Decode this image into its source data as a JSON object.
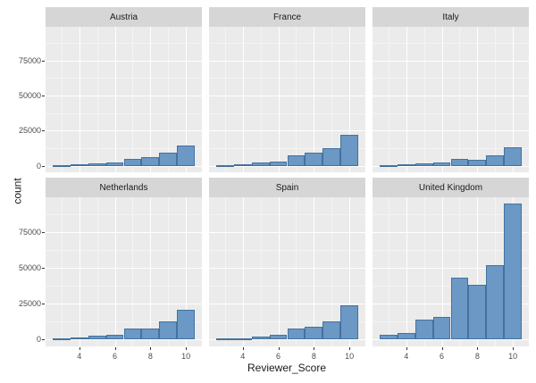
{
  "chart_data": {
    "type": "bar",
    "subtype": "faceted_histogram",
    "title": "",
    "xlabel": "Reviewer_Score",
    "ylabel": "count",
    "legend_position": "none",
    "grid": "major_and_minor",
    "binwidth": 1,
    "bin_centers": [
      3,
      4,
      5,
      6,
      7,
      8,
      9,
      10
    ],
    "x_range": [
      2.1,
      10.9
    ],
    "y_range": [
      -4700,
      99000
    ],
    "x_major_ticks": [
      4,
      6,
      8,
      10
    ],
    "x_minor_gridlines": [
      3,
      5,
      7,
      9
    ],
    "y_major_ticks": [
      0,
      25000,
      50000,
      75000
    ],
    "y_minor_gridlines": [
      12500,
      37500,
      62500,
      87500
    ],
    "facets": [
      {
        "label": "Austria",
        "values": [
          320,
          800,
          1500,
          2200,
          4700,
          6300,
          9100,
          14300
        ]
      },
      {
        "label": "France",
        "values": [
          400,
          1000,
          2100,
          2700,
          7700,
          9000,
          12500,
          21800
        ]
      },
      {
        "label": "Italy",
        "values": [
          400,
          800,
          1700,
          2300,
          4900,
          4300,
          7400,
          13000
        ]
      },
      {
        "label": "Netherlands",
        "values": [
          600,
          1250,
          2500,
          3500,
          7700,
          7700,
          12500,
          20800
        ]
      },
      {
        "label": "Spain",
        "values": [
          400,
          1000,
          2000,
          3100,
          7900,
          8900,
          12900,
          24000
        ]
      },
      {
        "label": "United Kingdom",
        "values": [
          3100,
          4800,
          13700,
          15600,
          43300,
          38000,
          51700,
          94400
        ]
      }
    ],
    "colors": {
      "bar_fill": "#6B98C4",
      "bar_stroke": "#44729F",
      "panel_bg": "#EBEBEB",
      "strip_bg": "#D6D6D6",
      "grid_major": "#FFFFFF",
      "grid_minor": "#F4F4F4",
      "tick_text": "#4D4D4D",
      "axis_title_text": "#1A1A1A",
      "figure_bg": "#FFFFFF"
    }
  }
}
